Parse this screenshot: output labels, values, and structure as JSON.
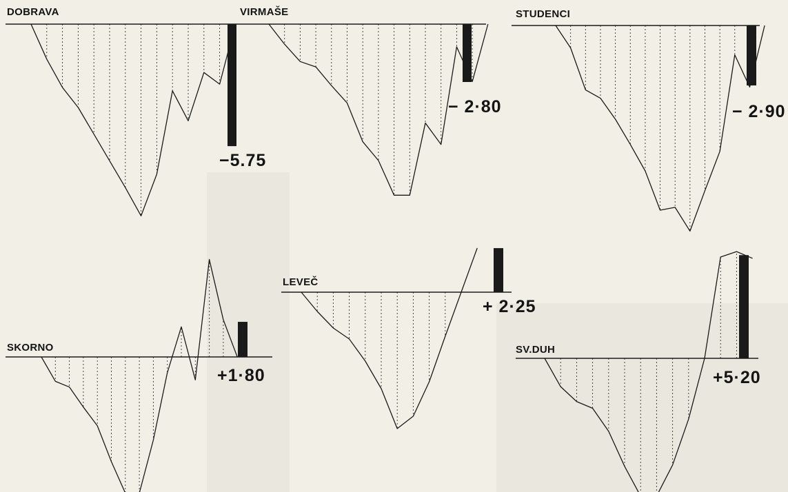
{
  "colors": {
    "ink": "#1a1a1a",
    "paper": "#f1efe6"
  },
  "chart_data": [
    {
      "type": "line",
      "station": "DOBRAVA",
      "value_label": "−5.75",
      "depth": [
        0,
        2.1,
        3.8,
        5.0,
        6.6,
        8.2,
        9.8,
        11.5,
        9.0,
        4.0,
        5.8,
        2.9,
        3.6,
        0
      ],
      "bar_value": -5.75
    },
    {
      "type": "line",
      "station": "VIRMAŠE",
      "value_label": "− 2·80",
      "depth": [
        0,
        1.5,
        2.8,
        3.2,
        4.6,
        5.9,
        8.8,
        10.2,
        12.8,
        12.8,
        7.4,
        9.0,
        1.7,
        4.3,
        0
      ],
      "bar_value": -2.8
    },
    {
      "type": "line",
      "station": "STUDENCI",
      "value_label": "− 2·90",
      "depth": [
        0,
        1.6,
        4.6,
        5.2,
        6.7,
        8.5,
        10.4,
        13.2,
        13.0,
        14.7,
        11.8,
        9.0,
        2.1,
        4.4,
        0
      ],
      "bar_value": -2.9
    },
    {
      "type": "line",
      "station": "SKORNO",
      "value_label": "+1·80",
      "depth": [
        0,
        1.7,
        2.1,
        3.5,
        4.8,
        7.3,
        9.5,
        9.5,
        5.8,
        1.1,
        -2.1,
        1.6,
        -6.8,
        -2.6,
        0
      ],
      "bar_value": 1.8
    },
    {
      "type": "line",
      "station": "LEVEČ",
      "value_label": "+ 2·25",
      "depth": [
        0,
        1.4,
        2.6,
        3.4,
        5.0,
        7.0,
        9.9,
        9.0,
        6.5,
        3.2,
        0,
        -3.2
      ],
      "bar_value": 2.25
    },
    {
      "type": "line",
      "station": "SV.DUH",
      "value_label": "+5·20",
      "depth": [
        0,
        2.1,
        3.2,
        3.7,
        5.4,
        8.0,
        10.2,
        10.2,
        7.9,
        4.5,
        0,
        -7.5,
        -7.9,
        -7.4
      ],
      "bar_value": 5.2
    }
  ]
}
